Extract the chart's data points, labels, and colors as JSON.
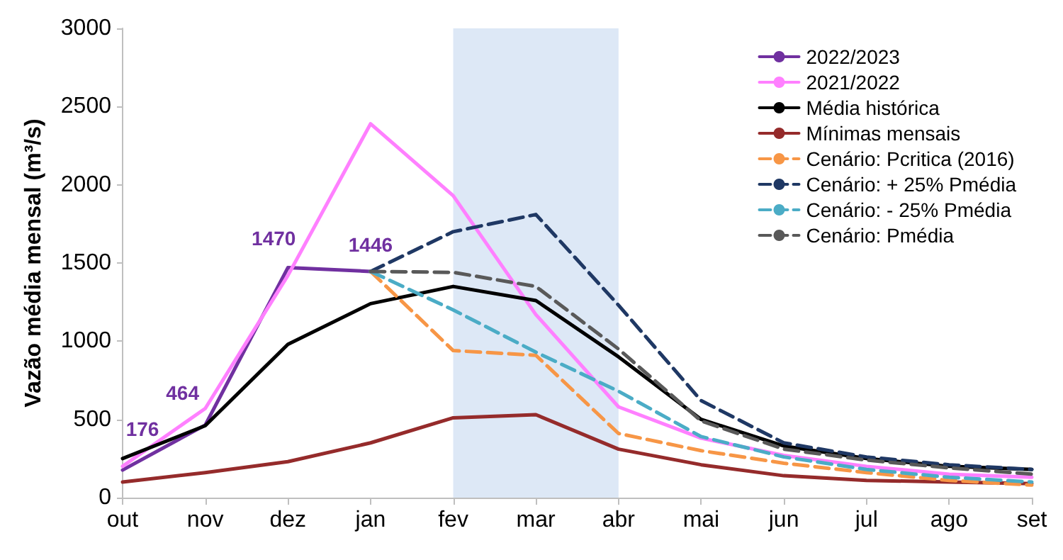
{
  "chart_data": {
    "type": "line",
    "ylabel": "Vazão média mensal (m³/s)",
    "categories": [
      "out",
      "nov",
      "dez",
      "jan",
      "fev",
      "mar",
      "abr",
      "mai",
      "jun",
      "jul",
      "ago",
      "set"
    ],
    "ylim": [
      0,
      3000
    ],
    "yticks": [
      0,
      500,
      1000,
      1500,
      2000,
      2500,
      3000
    ],
    "grid": false,
    "legend": "top right",
    "marker": "none",
    "bands": [
      {
        "axis": "x",
        "from": "fev",
        "to": "abr",
        "color": "#dde8f6"
      }
    ],
    "series": [
      {
        "name": "2022/2023",
        "color": "#7030a0",
        "line_style": "solid",
        "values": [
          176,
          464,
          1470,
          1446,
          null,
          null,
          null,
          null,
          null,
          null,
          null,
          null
        ],
        "value_labels": [
          "176",
          "464",
          "1470",
          "1446",
          null,
          null,
          null,
          null,
          null,
          null,
          null,
          null
        ]
      },
      {
        "name": "2021/2022",
        "color": "#ff80ff",
        "line_style": "solid",
        "values": [
          200,
          570,
          1420,
          2390,
          1930,
          1170,
          580,
          380,
          270,
          200,
          150,
          130
        ]
      },
      {
        "name": "Média histórica",
        "color": "#000000",
        "line_style": "solid",
        "values": [
          250,
          460,
          980,
          1240,
          1350,
          1260,
          900,
          500,
          330,
          250,
          200,
          180
        ]
      },
      {
        "name": "Mínimas mensais",
        "color": "#952b2b",
        "line_style": "solid",
        "values": [
          100,
          160,
          230,
          350,
          510,
          530,
          310,
          210,
          140,
          110,
          100,
          90
        ]
      },
      {
        "name": "Cenário: Pcritica (2016)",
        "color": "#f79646",
        "line_style": "dashed",
        "values": [
          null,
          null,
          null,
          1446,
          940,
          910,
          410,
          300,
          220,
          160,
          110,
          80
        ]
      },
      {
        "name": "Cenário: + 25% Pmédia",
        "color": "#1f3864",
        "line_style": "dashed",
        "values": [
          null,
          null,
          null,
          1446,
          1700,
          1810,
          1230,
          620,
          350,
          260,
          210,
          180
        ]
      },
      {
        "name": "Cenário: - 25% Pmédia",
        "color": "#4bacc6",
        "line_style": "dashed",
        "values": [
          null,
          null,
          null,
          1446,
          1200,
          930,
          680,
          390,
          260,
          180,
          130,
          100
        ]
      },
      {
        "name": "Cenário: Pmédia",
        "color": "#595959",
        "line_style": "dashed",
        "values": [
          null,
          null,
          null,
          1446,
          1440,
          1350,
          950,
          490,
          310,
          240,
          190,
          150
        ]
      }
    ]
  }
}
